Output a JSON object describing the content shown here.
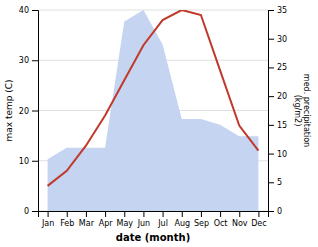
{
  "chart_data": {
    "type": "line",
    "xlabel": "date (month)",
    "ylabel": "max temp (C)",
    "y2label": "med. precipitation\n(kg/m2)",
    "categories": [
      "Jan",
      "Feb",
      "Mar",
      "Apr",
      "May",
      "Jun",
      "Jul",
      "Aug",
      "Sep",
      "Oct",
      "Nov",
      "Dec"
    ],
    "series": [
      {
        "type": "area",
        "axis": "y2",
        "color": "#c5d4f0",
        "values": [
          9,
          11,
          11,
          11,
          33,
          35,
          29,
          16,
          16,
          15,
          13,
          13
        ]
      },
      {
        "type": "line",
        "color": "#c0392b",
        "values": [
          5,
          8,
          13,
          19,
          26,
          33,
          38,
          40,
          39,
          28,
          17,
          12
        ]
      }
    ],
    "ylim": [
      0,
      40
    ],
    "yticks": [
      0,
      10,
      20,
      30,
      40
    ],
    "y2lim": [
      0,
      35
    ],
    "y2ticks": [
      0,
      5,
      10,
      15,
      20,
      25,
      30,
      35
    ],
    "grid": true
  }
}
